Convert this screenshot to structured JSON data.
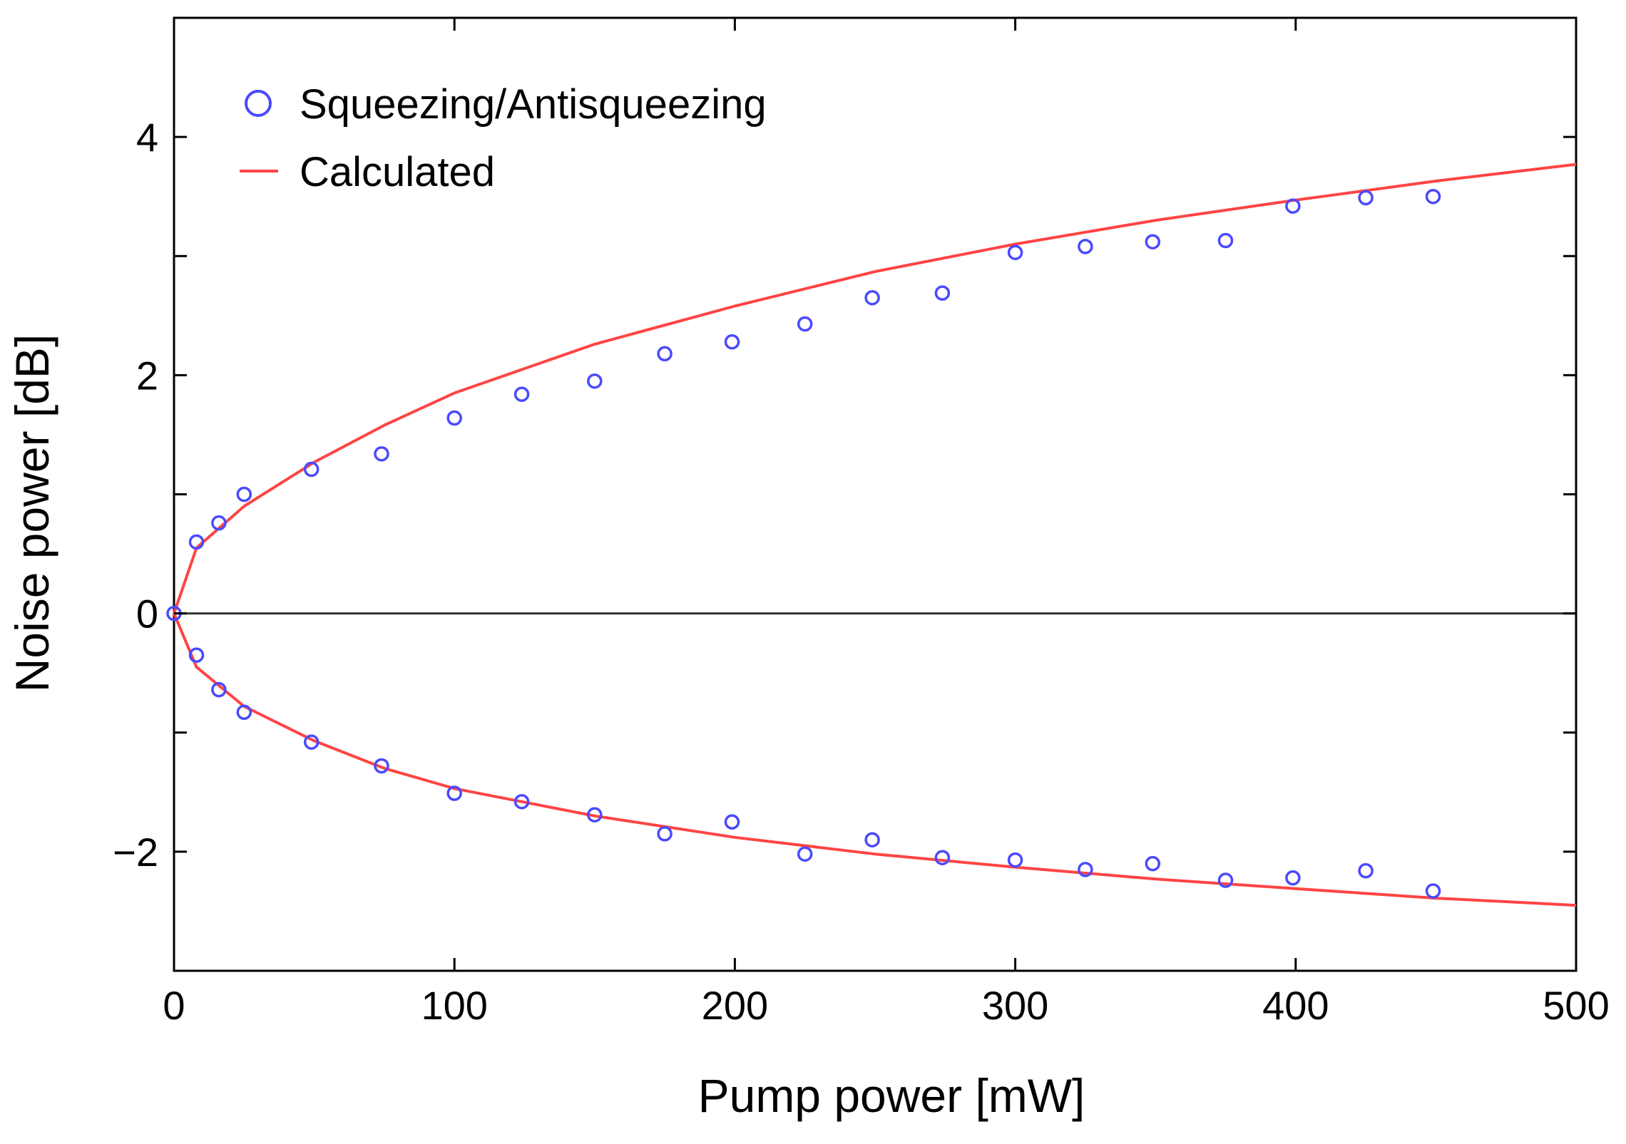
{
  "chart_data": {
    "type": "scatter",
    "title": "",
    "xlabel": "Pump power [mW]",
    "ylabel": "Noise power [dB]",
    "xlim": [
      0,
      500
    ],
    "ylim": [
      -3,
      5
    ],
    "xticks": [
      0,
      100,
      200,
      300,
      400,
      500
    ],
    "xtick_labels": [
      "0",
      "100",
      "200",
      "300",
      "400",
      "500"
    ],
    "yticks": [
      -2,
      0,
      2,
      4
    ],
    "ytick_labels": [
      "−2",
      "0",
      "2",
      "4"
    ],
    "grid": false,
    "legend_position": "top-left",
    "reference_line_y": 0,
    "series": [
      {
        "name": "Squeezing/Antisqueezing",
        "kind": "scatter",
        "marker": "open-circle",
        "color": "#4a4aff",
        "points": [
          [
            0,
            0.0
          ],
          [
            8,
            0.6
          ],
          [
            16,
            0.76
          ],
          [
            25,
            1.0
          ],
          [
            49,
            1.21
          ],
          [
            74,
            1.34
          ],
          [
            100,
            1.64
          ],
          [
            124,
            1.84
          ],
          [
            150,
            1.95
          ],
          [
            175,
            2.18
          ],
          [
            199,
            2.28
          ],
          [
            225,
            2.43
          ],
          [
            249,
            2.65
          ],
          [
            274,
            2.69
          ],
          [
            300,
            3.03
          ],
          [
            325,
            3.08
          ],
          [
            349,
            3.12
          ],
          [
            375,
            3.13
          ],
          [
            399,
            3.42
          ],
          [
            425,
            3.49
          ],
          [
            449,
            3.5
          ],
          [
            8,
            -0.35
          ],
          [
            16,
            -0.64
          ],
          [
            25,
            -0.83
          ],
          [
            49,
            -1.08
          ],
          [
            74,
            -1.28
          ],
          [
            100,
            -1.51
          ],
          [
            124,
            -1.58
          ],
          [
            150,
            -1.69
          ],
          [
            175,
            -1.85
          ],
          [
            199,
            -1.75
          ],
          [
            225,
            -2.02
          ],
          [
            249,
            -1.9
          ],
          [
            274,
            -2.05
          ],
          [
            300,
            -2.07
          ],
          [
            325,
            -2.15
          ],
          [
            349,
            -2.1
          ],
          [
            375,
            -2.24
          ],
          [
            399,
            -2.22
          ],
          [
            425,
            -2.16
          ],
          [
            449,
            -2.33
          ]
        ]
      },
      {
        "name": "Calculated",
        "kind": "line",
        "color": "#ff4444",
        "upper": [
          [
            0,
            0.0
          ],
          [
            8,
            0.55
          ],
          [
            25,
            0.9
          ],
          [
            50,
            1.27
          ],
          [
            75,
            1.58
          ],
          [
            100,
            1.85
          ],
          [
            150,
            2.26
          ],
          [
            200,
            2.58
          ],
          [
            250,
            2.87
          ],
          [
            300,
            3.1
          ],
          [
            350,
            3.3
          ],
          [
            400,
            3.47
          ],
          [
            450,
            3.63
          ],
          [
            500,
            3.77
          ]
        ],
        "lower": [
          [
            0,
            0.0
          ],
          [
            8,
            -0.45
          ],
          [
            25,
            -0.78
          ],
          [
            50,
            -1.07
          ],
          [
            75,
            -1.3
          ],
          [
            100,
            -1.47
          ],
          [
            150,
            -1.7
          ],
          [
            200,
            -1.88
          ],
          [
            250,
            -2.02
          ],
          [
            300,
            -2.13
          ],
          [
            350,
            -2.23
          ],
          [
            400,
            -2.31
          ],
          [
            450,
            -2.39
          ],
          [
            500,
            -2.45
          ]
        ]
      }
    ]
  }
}
